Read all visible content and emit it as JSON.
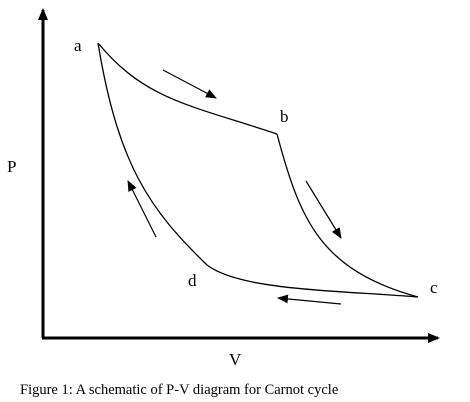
{
  "diagram": {
    "axes": {
      "y_label": "P",
      "x_label": "V"
    },
    "points": {
      "a": "a",
      "b": "b",
      "c": "c",
      "d": "d"
    },
    "caption": "Figure 1: A schematic of P-V diagram for Carnot cycle",
    "colors": {
      "stroke": "#000000",
      "background": "#ffffff"
    }
  }
}
